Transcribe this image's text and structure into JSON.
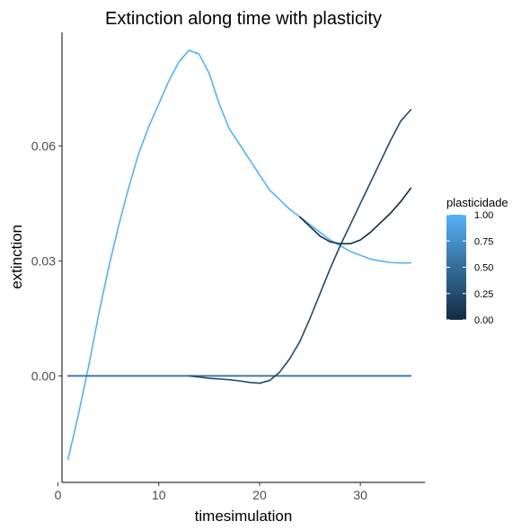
{
  "chart_data": {
    "type": "line",
    "title": "Extinction along time with plasticity",
    "xlabel": "timesimulation",
    "ylabel": "extinction",
    "xlim": [
      0.4,
      36.4
    ],
    "ylim": [
      -0.0278,
      0.0897
    ],
    "x_ticks": [
      0,
      10,
      20,
      30
    ],
    "y_ticks": [
      0.0,
      0.03,
      0.06
    ],
    "x_tick_labels": [
      "0",
      "10",
      "20",
      "30"
    ],
    "y_tick_labels": [
      "0.00",
      "0.03",
      "0.06"
    ],
    "grid": false,
    "legend": {
      "title": "plasticidade",
      "position": "right",
      "type": "colorbar",
      "range": [
        0,
        1
      ],
      "labels": [
        "1.00",
        "0.75",
        "0.50",
        "0.25",
        "0.00"
      ],
      "low_color": "#132B43",
      "high_color": "#56B1F7"
    },
    "series": [
      {
        "plasticidade": 1.0,
        "color": "#56B1F7",
        "x": [
          1,
          2,
          3,
          4,
          5,
          6,
          7,
          8,
          9,
          10,
          11,
          12,
          13,
          14,
          15,
          16,
          17,
          18,
          19,
          20,
          21,
          22,
          23,
          24,
          25,
          26,
          27,
          28,
          29,
          30,
          31,
          32,
          33,
          34,
          35
        ],
        "y": [
          -0.0218,
          -0.0105,
          0.002,
          0.0155,
          0.028,
          0.039,
          0.049,
          0.058,
          0.065,
          0.071,
          0.077,
          0.082,
          0.085,
          0.084,
          0.079,
          0.071,
          0.0645,
          0.0605,
          0.0565,
          0.0525,
          0.0485,
          0.046,
          0.0435,
          0.0415,
          0.0395,
          0.0375,
          0.0355,
          0.034,
          0.0325,
          0.0315,
          0.0305,
          0.03,
          0.0296,
          0.0295,
          0.0295
        ]
      },
      {
        "plasticidade": 0.75,
        "color": "#4590CE",
        "x": [
          1,
          5,
          10,
          15,
          20,
          25,
          30,
          35
        ],
        "y": [
          0,
          0,
          0,
          0,
          0,
          0,
          0,
          0
        ]
      },
      {
        "plasticidade": 0.5,
        "color": "#336A98",
        "x": [
          1,
          5,
          10,
          15,
          20,
          25,
          30,
          35
        ],
        "y": [
          0,
          0,
          0,
          0,
          0,
          0,
          0,
          0
        ]
      },
      {
        "plasticidade": 0.25,
        "color": "#23486B",
        "x": [
          13,
          14,
          15,
          16,
          17,
          18,
          19,
          20,
          21,
          22,
          23,
          24,
          25,
          26,
          27,
          28,
          29,
          30,
          31,
          32,
          33,
          34,
          35
        ],
        "y": [
          0.0,
          -0.0003,
          -0.0006,
          -0.0008,
          -0.001,
          -0.0013,
          -0.0017,
          -0.0019,
          -0.0012,
          0.001,
          0.0045,
          0.009,
          0.015,
          0.0215,
          0.028,
          0.034,
          0.0395,
          0.045,
          0.0505,
          0.056,
          0.0615,
          0.0665,
          0.0695
        ]
      },
      {
        "plasticidade": 0.0,
        "color": "#132B43",
        "x": [
          24,
          25,
          26,
          27,
          28,
          29,
          30,
          31,
          32,
          33,
          34,
          35
        ],
        "y": [
          0.0415,
          0.039,
          0.0365,
          0.035,
          0.0345,
          0.0345,
          0.0355,
          0.0375,
          0.04,
          0.0425,
          0.0455,
          0.049
        ]
      }
    ]
  }
}
